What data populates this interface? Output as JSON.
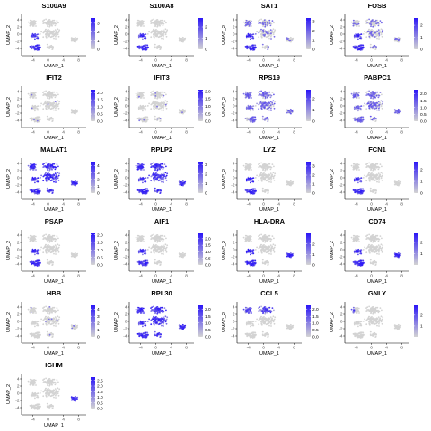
{
  "figure": {
    "layout": {
      "columns": 4,
      "rows": 6
    },
    "colors": {
      "low": "#d3d3d3",
      "high": "#2b16f7",
      "axis": "#000000",
      "tick_text": "#4d4d4d"
    }
  },
  "chart_data": [
    {
      "type": "scatter",
      "title": "S100A9",
      "xlabel": "UMAP_1",
      "ylabel": "UMAP_2",
      "x_ticks": [
        "-4",
        "0",
        "4",
        "8"
      ],
      "y_ticks": [
        "4",
        "2",
        "0",
        "-2",
        "-4"
      ],
      "xlim": [
        -7,
        10
      ],
      "ylim": [
        -6,
        5.5
      ],
      "colorbar": {
        "labels": [
          "3",
          "2",
          "1",
          "0"
        ],
        "max": 3.6,
        "values": [
          3,
          2,
          1,
          0
        ]
      },
      "expression_regions": [
        "bottom-left"
      ]
    },
    {
      "type": "scatter",
      "title": "S100A8",
      "xlabel": "UMAP_1",
      "ylabel": "UMAP_2",
      "x_ticks": [
        "-4",
        "0",
        "4",
        "8"
      ],
      "y_ticks": [
        "4",
        "2",
        "0",
        "-2",
        "-4"
      ],
      "xlim": [
        -7,
        10
      ],
      "ylim": [
        -6,
        5.5
      ],
      "colorbar": {
        "labels": [
          "2",
          "1",
          "0"
        ],
        "max": 2.8,
        "values": [
          2,
          1,
          0
        ]
      },
      "expression_regions": [
        "bottom-left"
      ]
    },
    {
      "type": "scatter",
      "title": "SAT1",
      "xlabel": "UMAP_1",
      "ylabel": "UMAP_2",
      "x_ticks": [
        "-4",
        "0",
        "4",
        "8"
      ],
      "y_ticks": [
        "4",
        "2",
        "0",
        "-2",
        "-4"
      ],
      "xlim": [
        -7,
        10
      ],
      "ylim": [
        -6,
        5.5
      ],
      "colorbar": {
        "labels": [
          "3",
          "2",
          "1",
          "0"
        ],
        "max": 3.4,
        "values": [
          3,
          2,
          1,
          0
        ]
      },
      "expression_regions": [
        "bottom-left",
        "scattered"
      ]
    },
    {
      "type": "scatter",
      "title": "FOSB",
      "xlabel": "UMAP_1",
      "ylabel": "UMAP_2",
      "x_ticks": [
        "-4",
        "0",
        "4",
        "8"
      ],
      "y_ticks": [
        "4",
        "2",
        "0",
        "-2",
        "-4"
      ],
      "xlim": [
        -7,
        10
      ],
      "ylim": [
        -6,
        5.5
      ],
      "colorbar": {
        "labels": [
          "2",
          "1",
          "0"
        ],
        "max": 2.6,
        "values": [
          2,
          1,
          0
        ]
      },
      "expression_regions": [
        "bottom-left",
        "scattered"
      ]
    },
    {
      "type": "scatter",
      "title": "IFIT2",
      "xlabel": "UMAP_1",
      "ylabel": "UMAP_2",
      "x_ticks": [
        "-4",
        "0",
        "4",
        "8"
      ],
      "y_ticks": [
        "4",
        "2",
        "0",
        "-2",
        "-4"
      ],
      "xlim": [
        -7,
        10
      ],
      "ylim": [
        -6,
        5.5
      ],
      "colorbar": {
        "labels": [
          "2.0",
          "1.5",
          "1.0",
          "0.5",
          "0.0"
        ],
        "max": 2.2,
        "values": [
          2.0,
          1.5,
          1.0,
          0.5,
          0.0
        ]
      },
      "expression_regions": [
        "sparse"
      ]
    },
    {
      "type": "scatter",
      "title": "IFIT3",
      "xlabel": "UMAP_1",
      "ylabel": "UMAP_2",
      "x_ticks": [
        "-4",
        "0",
        "4",
        "8"
      ],
      "y_ticks": [
        "4",
        "2",
        "0",
        "-2",
        "-4"
      ],
      "xlim": [
        -7,
        10
      ],
      "ylim": [
        -6,
        5.5
      ],
      "colorbar": {
        "labels": [
          "2.0",
          "1.5",
          "1.0",
          "0.5",
          "0.0"
        ],
        "max": 2.1,
        "values": [
          2.0,
          1.5,
          1.0,
          0.5,
          0.0
        ]
      },
      "expression_regions": [
        "sparse"
      ]
    },
    {
      "type": "scatter",
      "title": "RPS19",
      "xlabel": "UMAP_1",
      "ylabel": "UMAP_2",
      "x_ticks": [
        "-4",
        "0",
        "4",
        "8"
      ],
      "y_ticks": [
        "4",
        "2",
        "0",
        "-2",
        "-4"
      ],
      "xlim": [
        -7,
        10
      ],
      "ylim": [
        -6,
        5.5
      ],
      "colorbar": {
        "labels": [
          "2",
          "1",
          "0"
        ],
        "max": 2.8,
        "values": [
          2,
          1,
          0
        ]
      },
      "expression_regions": [
        "broad"
      ]
    },
    {
      "type": "scatter",
      "title": "PABPC1",
      "xlabel": "UMAP_1",
      "ylabel": "UMAP_2",
      "x_ticks": [
        "-4",
        "0",
        "4",
        "8"
      ],
      "y_ticks": [
        "4",
        "2",
        "0",
        "-2",
        "-4"
      ],
      "xlim": [
        -7,
        10
      ],
      "ylim": [
        -6,
        5.5
      ],
      "colorbar": {
        "labels": [
          "2.0",
          "1.5",
          "1.0",
          "0.5",
          "0.0"
        ],
        "max": 2.3,
        "values": [
          2.0,
          1.5,
          1.0,
          0.5,
          0.0
        ]
      },
      "expression_regions": [
        "broad"
      ]
    },
    {
      "type": "scatter",
      "title": "MALAT1",
      "xlabel": "UMAP_1",
      "ylabel": "UMAP_2",
      "x_ticks": [
        "-4",
        "0",
        "4",
        "8"
      ],
      "y_ticks": [
        "4",
        "2",
        "0",
        "-2",
        "-4"
      ],
      "xlim": [
        -7,
        10
      ],
      "ylim": [
        -6,
        5.5
      ],
      "colorbar": {
        "labels": [
          "4",
          "3",
          "2",
          "1",
          "0"
        ],
        "max": 4.6,
        "values": [
          4,
          3,
          2,
          1,
          0
        ]
      },
      "expression_regions": [
        "very-broad"
      ]
    },
    {
      "type": "scatter",
      "title": "RPLP2",
      "xlabel": "UMAP_1",
      "ylabel": "UMAP_2",
      "x_ticks": [
        "-4",
        "0",
        "4",
        "8"
      ],
      "y_ticks": [
        "4",
        "2",
        "0",
        "-2",
        "-4"
      ],
      "xlim": [
        -7,
        10
      ],
      "ylim": [
        -6,
        5.5
      ],
      "colorbar": {
        "labels": [
          "3",
          "2",
          "1",
          "0"
        ],
        "max": 3.3,
        "values": [
          3,
          2,
          1,
          0
        ]
      },
      "expression_regions": [
        "very-broad"
      ]
    },
    {
      "type": "scatter",
      "title": "LYZ",
      "xlabel": "UMAP_1",
      "ylabel": "UMAP_2",
      "x_ticks": [
        "-4",
        "0",
        "4",
        "8"
      ],
      "y_ticks": [
        "4",
        "2",
        "0",
        "-2",
        "-4"
      ],
      "xlim": [
        -7,
        10
      ],
      "ylim": [
        -6,
        5.5
      ],
      "colorbar": {
        "labels": [
          "3",
          "2",
          "1",
          "0"
        ],
        "max": 3.5,
        "values": [
          3,
          2,
          1,
          0
        ]
      },
      "expression_regions": [
        "bottom-left"
      ]
    },
    {
      "type": "scatter",
      "title": "FCN1",
      "xlabel": "UMAP_1",
      "ylabel": "UMAP_2",
      "x_ticks": [
        "-4",
        "0",
        "4",
        "8"
      ],
      "y_ticks": [
        "4",
        "2",
        "0",
        "-2",
        "-4"
      ],
      "xlim": [
        -7,
        10
      ],
      "ylim": [
        -6,
        5.5
      ],
      "colorbar": {
        "labels": [
          "2",
          "1",
          "0"
        ],
        "max": 2.7,
        "values": [
          2,
          1,
          0
        ]
      },
      "expression_regions": [
        "bottom-left"
      ]
    },
    {
      "type": "scatter",
      "title": "PSAP",
      "xlabel": "UMAP_1",
      "ylabel": "UMAP_2",
      "x_ticks": [
        "-4",
        "0",
        "4",
        "8"
      ],
      "y_ticks": [
        "4",
        "2",
        "0",
        "-2",
        "-4"
      ],
      "xlim": [
        -7,
        10
      ],
      "ylim": [
        -6,
        5.5
      ],
      "colorbar": {
        "labels": [
          "2.0",
          "1.5",
          "1.0",
          "0.5",
          "0.0"
        ],
        "max": 2.1,
        "values": [
          2.0,
          1.5,
          1.0,
          0.5,
          0.0
        ]
      },
      "expression_regions": [
        "bottom-left"
      ]
    },
    {
      "type": "scatter",
      "title": "AIF1",
      "xlabel": "UMAP_1",
      "ylabel": "UMAP_2",
      "x_ticks": [
        "-4",
        "0",
        "4",
        "8"
      ],
      "y_ticks": [
        "4",
        "2",
        "0",
        "-2",
        "-4"
      ],
      "xlim": [
        -7,
        10
      ],
      "ylim": [
        -6,
        5.5
      ],
      "colorbar": {
        "labels": [
          "2.0",
          "1.5",
          "1.0",
          "0.5",
          "0.0"
        ],
        "max": 2.4,
        "values": [
          2.0,
          1.5,
          1.0,
          0.5,
          0.0
        ]
      },
      "expression_regions": [
        "bottom-left"
      ]
    },
    {
      "type": "scatter",
      "title": "HLA-DRA",
      "xlabel": "UMAP_1",
      "ylabel": "UMAP_2",
      "x_ticks": [
        "-4",
        "0",
        "4",
        "8"
      ],
      "y_ticks": [
        "4",
        "2",
        "0",
        "-2",
        "-4"
      ],
      "xlim": [
        -7,
        10
      ],
      "ylim": [
        -6,
        5.5
      ],
      "colorbar": {
        "labels": [
          "2",
          "1",
          "0"
        ],
        "max": 3.0,
        "values": [
          2,
          1,
          0
        ]
      },
      "expression_regions": [
        "bottom-left",
        "right"
      ]
    },
    {
      "type": "scatter",
      "title": "CD74",
      "xlabel": "UMAP_1",
      "ylabel": "UMAP_2",
      "x_ticks": [
        "-4",
        "0",
        "4",
        "8"
      ],
      "y_ticks": [
        "4",
        "2",
        "0",
        "-2",
        "-4"
      ],
      "xlim": [
        -7,
        10
      ],
      "ylim": [
        -6,
        5.5
      ],
      "colorbar": {
        "labels": [
          "2",
          "1"
        ],
        "max": 2.8,
        "values": [
          2,
          1
        ]
      },
      "expression_regions": [
        "bottom-left",
        "right"
      ]
    },
    {
      "type": "scatter",
      "title": "HBB",
      "xlabel": "UMAP_1",
      "ylabel": "UMAP_2",
      "x_ticks": [
        "-4",
        "0",
        "4",
        "8"
      ],
      "y_ticks": [
        "4",
        "2",
        "0",
        "-2",
        "-4"
      ],
      "xlim": [
        -7,
        10
      ],
      "ylim": [
        -6,
        5.5
      ],
      "colorbar": {
        "labels": [
          "4",
          "3",
          "2",
          "1",
          "0"
        ],
        "max": 4.6,
        "values": [
          4,
          3,
          2,
          1,
          0
        ]
      },
      "expression_regions": [
        "sparse"
      ]
    },
    {
      "type": "scatter",
      "title": "RPL30",
      "xlabel": "UMAP_1",
      "ylabel": "UMAP_2",
      "x_ticks": [
        "-4",
        "0",
        "4",
        "8"
      ],
      "y_ticks": [
        "4",
        "2",
        "0",
        "-2",
        "-4"
      ],
      "xlim": [
        -7,
        10
      ],
      "ylim": [
        -6,
        5.5
      ],
      "colorbar": {
        "labels": [
          "2.0",
          "1.5",
          "1.0",
          "0.5",
          "0.0"
        ],
        "max": 2.3,
        "values": [
          2.0,
          1.5,
          1.0,
          0.5,
          0.0
        ]
      },
      "expression_regions": [
        "very-broad"
      ]
    },
    {
      "type": "scatter",
      "title": "CCL5",
      "xlabel": "UMAP_1",
      "ylabel": "UMAP_2",
      "x_ticks": [
        "-4",
        "0",
        "4",
        "8"
      ],
      "y_ticks": [
        "4",
        "2",
        "0",
        "-2",
        "-4"
      ],
      "xlim": [
        -7,
        10
      ],
      "ylim": [
        -6,
        5.5
      ],
      "colorbar": {
        "labels": [
          "2.0",
          "1.5",
          "1.0",
          "0.5",
          "0.0"
        ],
        "max": 2.3,
        "values": [
          2.0,
          1.5,
          1.0,
          0.5,
          0.0
        ]
      },
      "expression_regions": [
        "top-left"
      ]
    },
    {
      "type": "scatter",
      "title": "GNLY",
      "xlabel": "UMAP_1",
      "ylabel": "UMAP_2",
      "x_ticks": [
        "-4",
        "0",
        "4",
        "8"
      ],
      "y_ticks": [
        "4",
        "2",
        "0",
        "-2",
        "-4"
      ],
      "xlim": [
        -7,
        10
      ],
      "ylim": [
        -6,
        5.5
      ],
      "colorbar": {
        "labels": [
          "2",
          "1"
        ],
        "max": 2.9,
        "values": [
          2,
          1
        ]
      },
      "expression_regions": [
        "top-left-edge"
      ]
    },
    {
      "type": "scatter",
      "title": "IGHM",
      "xlabel": "UMAP_1",
      "ylabel": "UMAP_2",
      "x_ticks": [
        "-4",
        "0",
        "4",
        "8"
      ],
      "y_ticks": [
        "4",
        "2",
        "0",
        "-2",
        "-4"
      ],
      "xlim": [
        -7,
        10
      ],
      "ylim": [
        -6,
        5.5
      ],
      "colorbar": {
        "labels": [
          "2.5",
          "2.0",
          "1.5",
          "1.0",
          "0.5",
          "0.0"
        ],
        "max": 2.8,
        "values": [
          2.5,
          2.0,
          1.5,
          1.0,
          0.5,
          0.0
        ]
      },
      "expression_regions": [
        "right"
      ]
    }
  ]
}
